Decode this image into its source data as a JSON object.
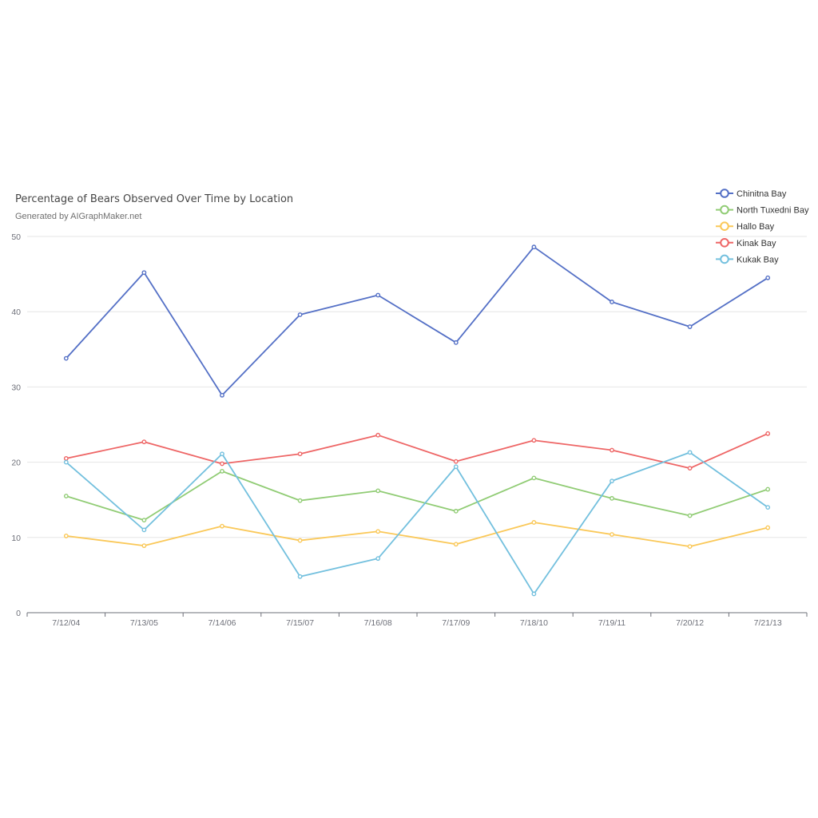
{
  "chart_data": {
    "type": "line",
    "title": "Percentage of Bears Observed Over Time by Location",
    "subtitle": "Generated by AIGraphMaker.net",
    "xlabel": "",
    "ylabel": "",
    "categories": [
      "7/12/04",
      "7/13/05",
      "7/14/06",
      "7/15/07",
      "7/16/08",
      "7/17/09",
      "7/18/10",
      "7/19/11",
      "7/20/12",
      "7/21/13"
    ],
    "ylim": [
      0,
      50
    ],
    "yticks": [
      0,
      10,
      20,
      30,
      40,
      50
    ],
    "grid": true,
    "legend_position": "top-right",
    "series": [
      {
        "name": "Chinitna Bay",
        "color": "#5470c6",
        "values": [
          33.8,
          45.2,
          28.9,
          39.6,
          42.2,
          35.9,
          48.6,
          41.3,
          38.0,
          44.5
        ]
      },
      {
        "name": "North Tuxedni Bay",
        "color": "#91cc75",
        "values": [
          15.5,
          12.3,
          18.8,
          14.9,
          16.2,
          13.5,
          17.9,
          15.2,
          12.9,
          16.4
        ]
      },
      {
        "name": "Hallo Bay",
        "color": "#fac858",
        "values": [
          10.2,
          8.9,
          11.5,
          9.6,
          10.8,
          9.1,
          12.0,
          10.4,
          8.8,
          11.3
        ]
      },
      {
        "name": "Kinak Bay",
        "color": "#ee6666",
        "values": [
          20.5,
          22.7,
          19.8,
          21.1,
          23.6,
          20.1,
          22.9,
          21.6,
          19.2,
          23.8
        ]
      },
      {
        "name": "Kukak Bay",
        "color": "#73c0de",
        "values": [
          20.0,
          11.0,
          21.1,
          4.8,
          7.2,
          19.4,
          2.5,
          17.5,
          21.3,
          14.0
        ]
      }
    ]
  }
}
